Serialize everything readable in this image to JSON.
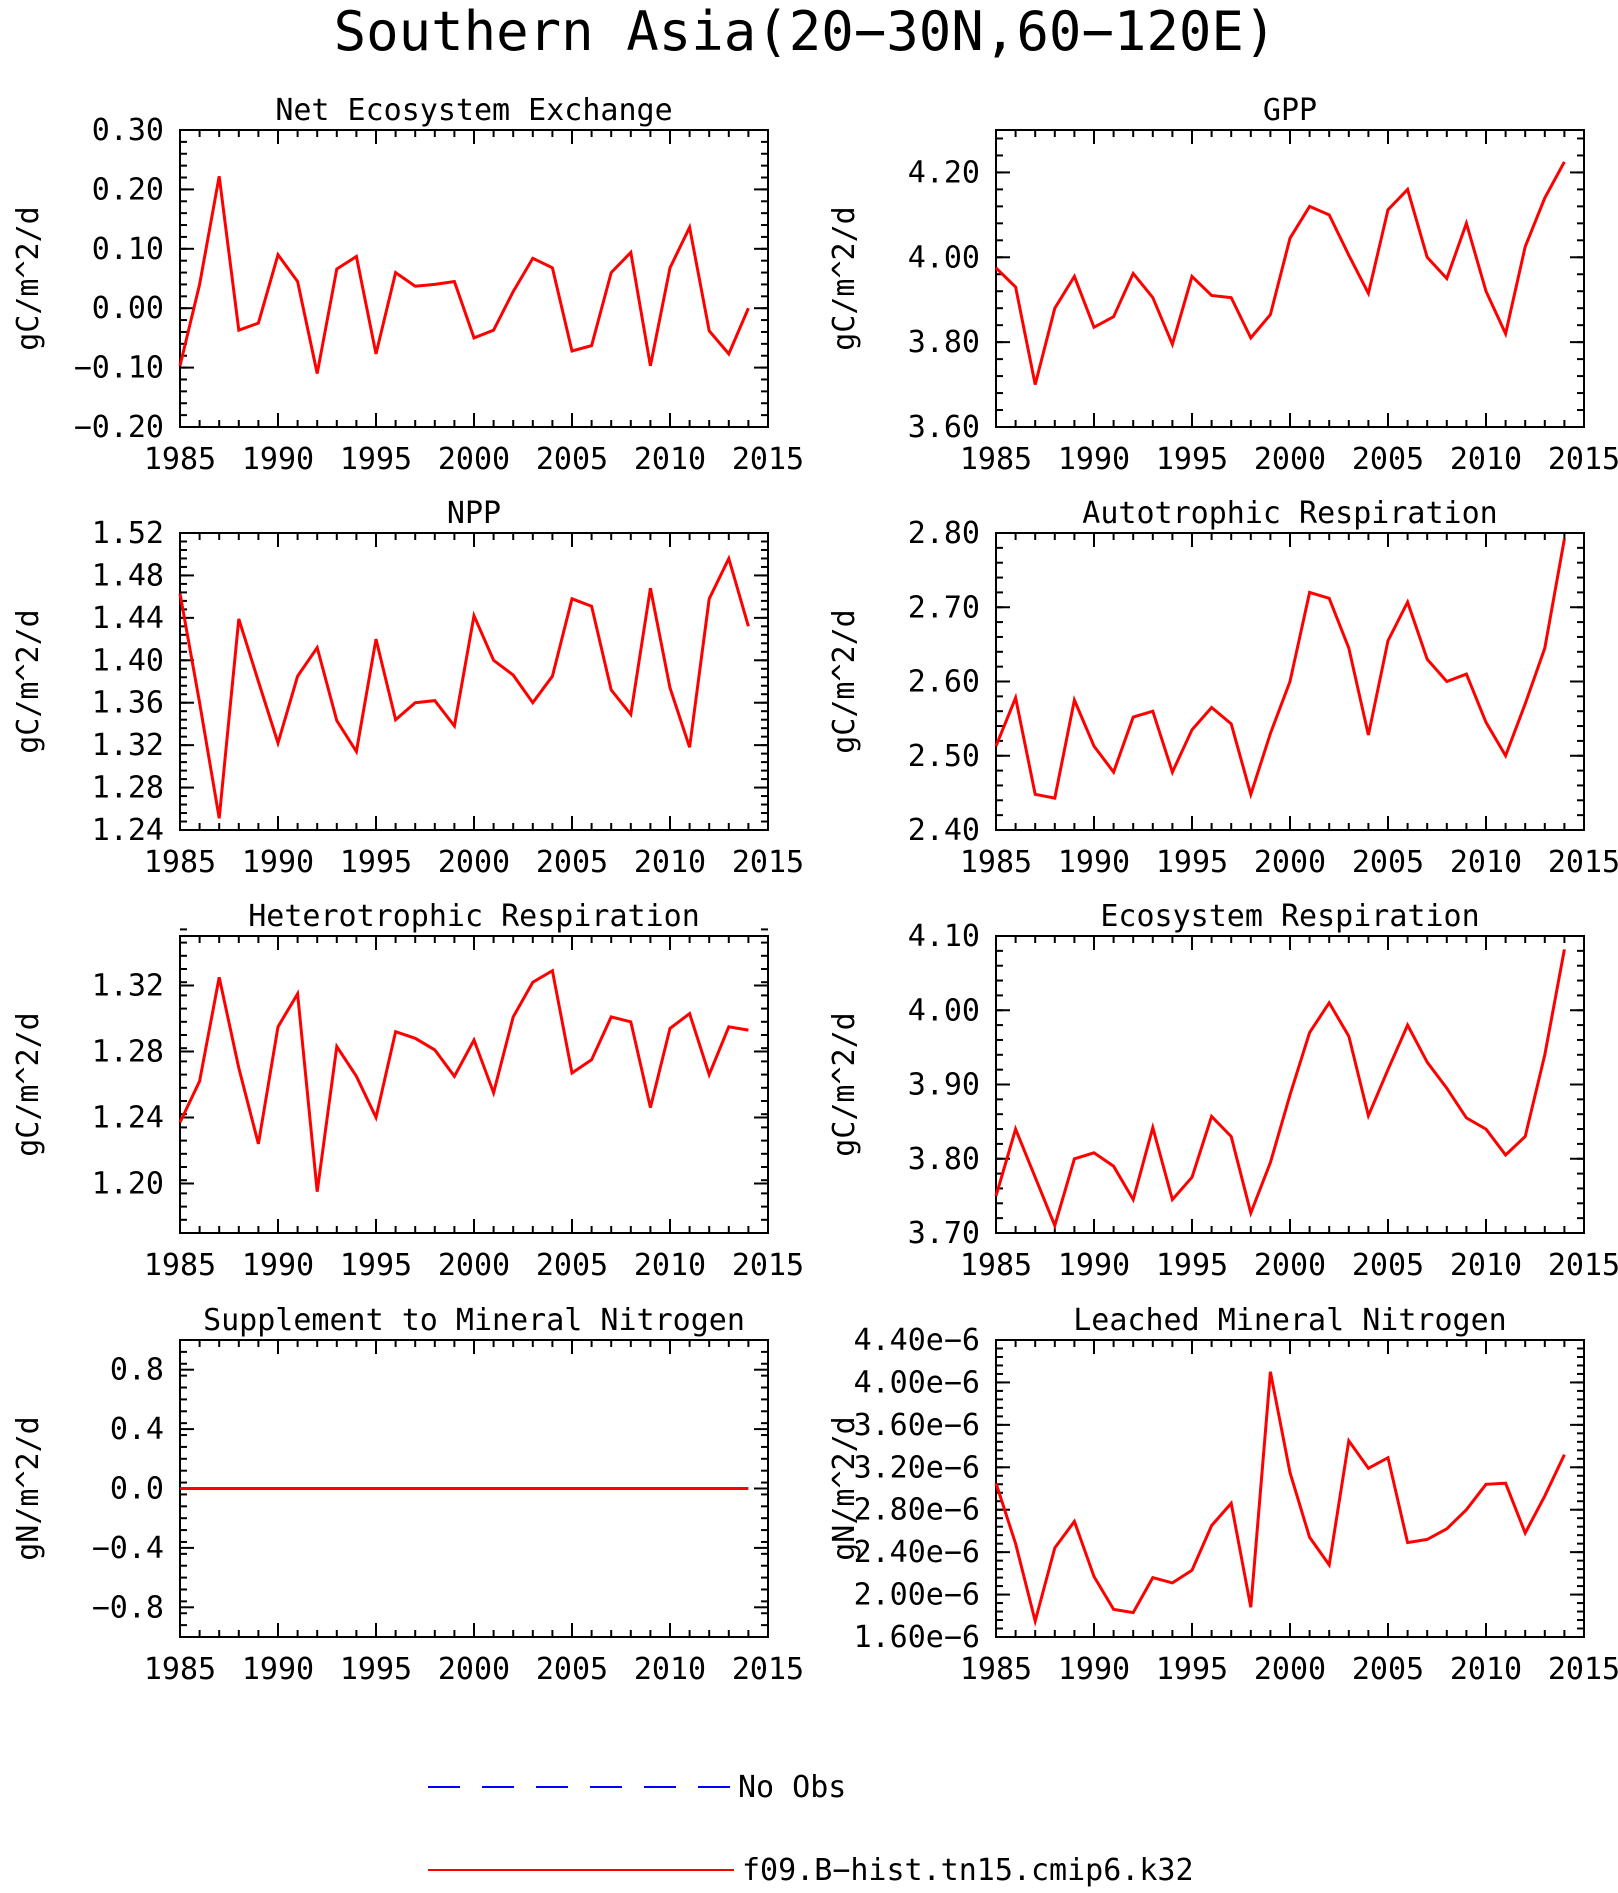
{
  "figure_title": "Southern Asia(20-30N,60-120E)",
  "legend": {
    "items": [
      {
        "label": "No Obs",
        "color": "#0000ff",
        "style": "dashed"
      },
      {
        "label": "f09.B-hist.tn15.cmip6.k32",
        "color": "#ff0000",
        "style": "solid"
      }
    ]
  },
  "colors": {
    "model_line": "#ff0000",
    "obs_line": "#0000ff",
    "axis": "#000000"
  },
  "chart_data": [
    {
      "type": "line",
      "title": "Net Ecosystem Exchange",
      "ylabel": "gC/m^2/d",
      "xlim": [
        1985,
        2015
      ],
      "ylim": [
        -0.2,
        0.3
      ],
      "xticks": [
        "1985",
        "1990",
        "1995",
        "2000",
        "2005",
        "2010",
        "2015"
      ],
      "yticks": [
        {
          "v": -0.2,
          "t": "-0.20"
        },
        {
          "v": -0.1,
          "t": "-0.10"
        },
        {
          "v": 0.0,
          "t": "0.00"
        },
        {
          "v": 0.1,
          "t": "0.10"
        },
        {
          "v": 0.2,
          "t": "0.20"
        },
        {
          "v": 0.3,
          "t": "0.30"
        }
      ],
      "yminor": 0.02,
      "grid": false,
      "series": [
        {
          "name": "f09.B-hist.tn15.cmip6.k32",
          "x": [
            1985,
            1986,
            1987,
            1988,
            1989,
            1990,
            1991,
            1992,
            1993,
            1994,
            1995,
            1996,
            1997,
            1998,
            1999,
            2000,
            2001,
            2002,
            2003,
            2004,
            2005,
            2006,
            2007,
            2008,
            2009,
            2010,
            2011,
            2012,
            2013,
            2014
          ],
          "values": [
            -0.097,
            0.04,
            0.222,
            -0.037,
            -0.025,
            0.09,
            0.045,
            -0.11,
            0.066,
            0.087,
            -0.077,
            0.06,
            0.037,
            0.04,
            0.045,
            -0.05,
            -0.037,
            0.028,
            0.084,
            0.068,
            -0.072,
            -0.063,
            0.06,
            0.094,
            -0.097,
            0.068,
            0.136,
            -0.038,
            -0.077,
            0.0
          ]
        }
      ]
    },
    {
      "type": "line",
      "title": "GPP",
      "ylabel": "gC/m^2/d",
      "xlim": [
        1985,
        2015
      ],
      "ylim": [
        3.6,
        4.3
      ],
      "xticks": [
        "1985",
        "1990",
        "1995",
        "2000",
        "2005",
        "2010",
        "2015"
      ],
      "yticks": [
        {
          "v": 3.6,
          "t": "3.60"
        },
        {
          "v": 3.8,
          "t": "3.80"
        },
        {
          "v": 4.0,
          "t": "4.00"
        },
        {
          "v": 4.2,
          "t": "4.20"
        }
      ],
      "yminor": 0.04,
      "grid": false,
      "series": [
        {
          "name": "f09.B-hist.tn15.cmip6.k32",
          "x": [
            1985,
            1986,
            1987,
            1988,
            1989,
            1990,
            1991,
            1992,
            1993,
            1994,
            1995,
            1996,
            1997,
            1998,
            1999,
            2000,
            2001,
            2002,
            2003,
            2004,
            2005,
            2006,
            2007,
            2008,
            2009,
            2010,
            2011,
            2012,
            2013,
            2014
          ],
          "values": [
            3.975,
            3.93,
            3.7,
            3.88,
            3.955,
            3.835,
            3.86,
            3.962,
            3.905,
            3.795,
            3.955,
            3.91,
            3.905,
            3.81,
            3.865,
            4.045,
            4.12,
            4.1,
            4.005,
            3.915,
            4.112,
            4.16,
            4.0,
            3.95,
            4.08,
            3.92,
            3.82,
            4.025,
            4.14,
            4.225
          ]
        }
      ]
    },
    {
      "type": "line",
      "title": "NPP",
      "ylabel": "gC/m^2/d",
      "xlim": [
        1985,
        2015
      ],
      "ylim": [
        1.24,
        1.52
      ],
      "xticks": [
        "1985",
        "1990",
        "1995",
        "2000",
        "2005",
        "2010",
        "2015"
      ],
      "yticks": [
        {
          "v": 1.24,
          "t": "1.24"
        },
        {
          "v": 1.28,
          "t": "1.28"
        },
        {
          "v": 1.32,
          "t": "1.32"
        },
        {
          "v": 1.36,
          "t": "1.36"
        },
        {
          "v": 1.4,
          "t": "1.40"
        },
        {
          "v": 1.44,
          "t": "1.44"
        },
        {
          "v": 1.48,
          "t": "1.48"
        },
        {
          "v": 1.52,
          "t": "1.52"
        }
      ],
      "yminor": 0.008,
      "grid": false,
      "series": [
        {
          "name": "f09.B-hist.tn15.cmip6.k32",
          "x": [
            1985,
            1986,
            1987,
            1988,
            1989,
            1990,
            1991,
            1992,
            1993,
            1994,
            1995,
            1996,
            1997,
            1998,
            1999,
            2000,
            2001,
            2002,
            2003,
            2004,
            2005,
            2006,
            2007,
            2008,
            2009,
            2010,
            2011,
            2012,
            2013,
            2014
          ],
          "values": [
            1.463,
            1.36,
            1.251,
            1.439,
            1.38,
            1.322,
            1.385,
            1.412,
            1.343,
            1.314,
            1.42,
            1.344,
            1.36,
            1.362,
            1.338,
            1.442,
            1.4,
            1.386,
            1.36,
            1.385,
            1.458,
            1.451,
            1.372,
            1.349,
            1.468,
            1.374,
            1.318,
            1.458,
            1.496,
            1.432
          ]
        }
      ]
    },
    {
      "type": "line",
      "title": "Autotrophic Respiration",
      "ylabel": "gC/m^2/d",
      "xlim": [
        1985,
        2015
      ],
      "ylim": [
        2.4,
        2.8
      ],
      "xticks": [
        "1985",
        "1990",
        "1995",
        "2000",
        "2005",
        "2010",
        "2015"
      ],
      "yticks": [
        {
          "v": 2.4,
          "t": "2.40"
        },
        {
          "v": 2.5,
          "t": "2.50"
        },
        {
          "v": 2.6,
          "t": "2.60"
        },
        {
          "v": 2.7,
          "t": "2.70"
        },
        {
          "v": 2.8,
          "t": "2.80"
        }
      ],
      "yminor": 0.02,
      "grid": false,
      "series": [
        {
          "name": "f09.B-hist.tn15.cmip6.k32",
          "x": [
            1985,
            1986,
            1987,
            1988,
            1989,
            1990,
            1991,
            1992,
            1993,
            1994,
            1995,
            1996,
            1997,
            1998,
            1999,
            2000,
            2001,
            2002,
            2003,
            2004,
            2005,
            2006,
            2007,
            2008,
            2009,
            2010,
            2011,
            2012,
            2013,
            2014
          ],
          "values": [
            2.513,
            2.578,
            2.448,
            2.443,
            2.575,
            2.513,
            2.478,
            2.552,
            2.56,
            2.478,
            2.535,
            2.565,
            2.543,
            2.448,
            2.53,
            2.6,
            2.72,
            2.712,
            2.645,
            2.528,
            2.655,
            2.707,
            2.63,
            2.6,
            2.61,
            2.545,
            2.5,
            2.57,
            2.645,
            2.792
          ]
        }
      ]
    },
    {
      "type": "line",
      "title": "Heterotrophic Respiration",
      "ylabel": "gC/m^2/d",
      "xlim": [
        1985,
        2015
      ],
      "ylim": [
        1.17,
        1.35
      ],
      "xticks": [
        "1985",
        "1990",
        "1995",
        "2000",
        "2005",
        "2010",
        "2015"
      ],
      "yticks": [
        {
          "v": 1.2,
          "t": "1.20"
        },
        {
          "v": 1.24,
          "t": "1.24"
        },
        {
          "v": 1.28,
          "t": "1.28"
        },
        {
          "v": 1.32,
          "t": "1.32"
        }
      ],
      "yminor": 0.008,
      "grid": false,
      "series": [
        {
          "name": "f09.B-hist.tn15.cmip6.k32",
          "x": [
            1985,
            1986,
            1987,
            1988,
            1989,
            1990,
            1991,
            1992,
            1993,
            1994,
            1995,
            1996,
            1997,
            1998,
            1999,
            2000,
            2001,
            2002,
            2003,
            2004,
            2005,
            2006,
            2007,
            2008,
            2009,
            2010,
            2011,
            2012,
            2013,
            2014
          ],
          "values": [
            1.237,
            1.262,
            1.325,
            1.27,
            1.224,
            1.295,
            1.315,
            1.195,
            1.283,
            1.265,
            1.24,
            1.292,
            1.288,
            1.281,
            1.265,
            1.287,
            1.255,
            1.301,
            1.322,
            1.329,
            1.267,
            1.275,
            1.301,
            1.298,
            1.246,
            1.294,
            1.303,
            1.266,
            1.295,
            1.293
          ]
        }
      ]
    },
    {
      "type": "line",
      "title": "Ecosystem Respiration",
      "ylabel": "gC/m^2/d",
      "xlim": [
        1985,
        2015
      ],
      "ylim": [
        3.7,
        4.1
      ],
      "xticks": [
        "1985",
        "1990",
        "1995",
        "2000",
        "2005",
        "2010",
        "2015"
      ],
      "yticks": [
        {
          "v": 3.7,
          "t": "3.70"
        },
        {
          "v": 3.8,
          "t": "3.80"
        },
        {
          "v": 3.9,
          "t": "3.90"
        },
        {
          "v": 4.0,
          "t": "4.00"
        },
        {
          "v": 4.1,
          "t": "4.10"
        }
      ],
      "yminor": 0.02,
      "grid": false,
      "series": [
        {
          "name": "f09.B-hist.tn15.cmip6.k32",
          "x": [
            1985,
            1986,
            1987,
            1988,
            1989,
            1990,
            1991,
            1992,
            1993,
            1994,
            1995,
            1996,
            1997,
            1998,
            1999,
            2000,
            2001,
            2002,
            2003,
            2004,
            2005,
            2006,
            2007,
            2008,
            2009,
            2010,
            2011,
            2012,
            2013,
            2014
          ],
          "values": [
            3.75,
            3.84,
            3.775,
            3.71,
            3.8,
            3.808,
            3.79,
            3.745,
            3.842,
            3.745,
            3.775,
            3.857,
            3.83,
            3.727,
            3.795,
            3.886,
            3.97,
            4.01,
            3.965,
            3.858,
            3.92,
            3.98,
            3.93,
            3.895,
            3.855,
            3.84,
            3.805,
            3.83,
            3.94,
            4.082
          ]
        }
      ]
    },
    {
      "type": "line",
      "title": "Supplement to Mineral Nitrogen",
      "ylabel": "gN/m^2/d",
      "xlim": [
        1985,
        2015
      ],
      "ylim": [
        -1.0,
        1.0
      ],
      "xticks": [
        "1985",
        "1990",
        "1995",
        "2000",
        "2005",
        "2010",
        "2015"
      ],
      "yticks": [
        {
          "v": -0.8,
          "t": "-0.8"
        },
        {
          "v": -0.4,
          "t": "-0.4"
        },
        {
          "v": 0.0,
          "t": "0.0"
        },
        {
          "v": 0.4,
          "t": "0.4"
        },
        {
          "v": 0.8,
          "t": "0.8"
        }
      ],
      "yminor": 0.08,
      "grid": false,
      "series": [
        {
          "name": "f09.B-hist.tn15.cmip6.k32",
          "x": [
            1985,
            2014
          ],
          "values": [
            0.0,
            0.0
          ]
        }
      ]
    },
    {
      "type": "line",
      "title": "Leached Mineral Nitrogen",
      "ylabel": "gN/m^2/d",
      "xlim": [
        1985,
        2015
      ],
      "ylim": [
        1.6e-06,
        4.4e-06
      ],
      "xticks": [
        "1985",
        "1990",
        "1995",
        "2000",
        "2005",
        "2010",
        "2015"
      ],
      "yticks": [
        {
          "v": 1.6e-06,
          "t": "1.60e-6"
        },
        {
          "v": 2e-06,
          "t": "2.00e-6"
        },
        {
          "v": 2.4e-06,
          "t": "2.40e-6"
        },
        {
          "v": 2.8e-06,
          "t": "2.80e-6"
        },
        {
          "v": 3.2e-06,
          "t": "3.20e-6"
        },
        {
          "v": 3.6e-06,
          "t": "3.60e-6"
        },
        {
          "v": 4e-06,
          "t": "4.00e-6"
        },
        {
          "v": 4.4e-06,
          "t": "4.40e-6"
        }
      ],
      "yminor": 8e-08,
      "grid": false,
      "series": [
        {
          "name": "f09.B-hist.tn15.cmip6.k32",
          "x": [
            1985,
            1986,
            1987,
            1988,
            1989,
            1990,
            1991,
            1992,
            1993,
            1994,
            1995,
            1996,
            1997,
            1998,
            1999,
            2000,
            2001,
            2002,
            2003,
            2004,
            2005,
            2006,
            2007,
            2008,
            2009,
            2010,
            2011,
            2012,
            2013,
            2014
          ],
          "values": [
            3.05e-06,
            2.48e-06,
            1.75e-06,
            2.44e-06,
            2.69e-06,
            2.17e-06,
            1.86e-06,
            1.83e-06,
            2.16e-06,
            2.11e-06,
            2.23e-06,
            2.65e-06,
            2.86e-06,
            1.88e-06,
            4.1e-06,
            3.15e-06,
            2.54e-06,
            2.28e-06,
            3.45e-06,
            3.19e-06,
            3.29e-06,
            2.49e-06,
            2.52e-06,
            2.62e-06,
            2.8e-06,
            3.04e-06,
            3.05e-06,
            2.58e-06,
            2.93e-06,
            3.32e-06
          ]
        }
      ]
    }
  ]
}
